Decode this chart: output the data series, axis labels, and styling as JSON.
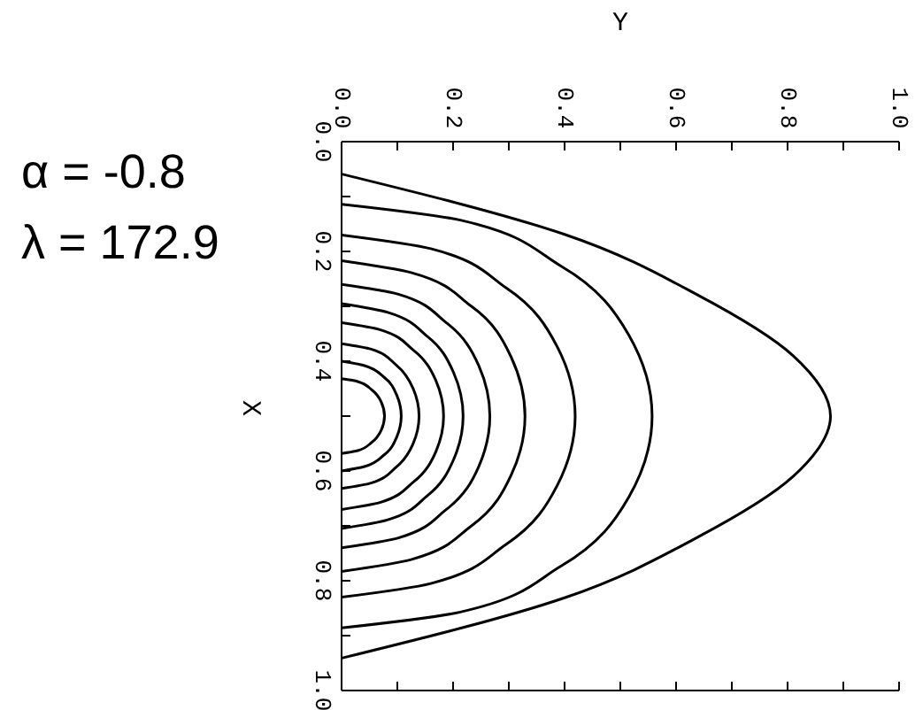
{
  "chart_data": {
    "type": "line",
    "xlabel": "Y",
    "ylabel": "X",
    "xlim": [
      0,
      1
    ],
    "ylim": [
      1,
      0
    ],
    "xticks": [
      {
        "value": 0,
        "label": "0.0"
      },
      {
        "value": 0.1,
        "label": null
      },
      {
        "value": 0.2,
        "label": "0.2"
      },
      {
        "value": 0.3,
        "label": null
      },
      {
        "value": 0.4,
        "label": "0.4"
      },
      {
        "value": 0.5,
        "label": null
      },
      {
        "value": 0.6,
        "label": "0.6"
      },
      {
        "value": 0.7,
        "label": null
      },
      {
        "value": 0.8,
        "label": "0.8"
      },
      {
        "value": 0.9,
        "label": null
      },
      {
        "value": 1,
        "label": "1.0"
      }
    ],
    "yticks": [
      {
        "value": 0,
        "label": "0.0"
      },
      {
        "value": 0.1,
        "label": null
      },
      {
        "value": 0.2,
        "label": "0.2"
      },
      {
        "value": 0.3,
        "label": null
      },
      {
        "value": 0.4,
        "label": "0.4"
      },
      {
        "value": 0.5,
        "label": null
      },
      {
        "value": 0.6,
        "label": "0.6"
      },
      {
        "value": 0.7,
        "label": null
      },
      {
        "value": 0.8,
        "label": "0.8"
      },
      {
        "value": 0.9,
        "label": null
      },
      {
        "value": 1,
        "label": "1.0"
      }
    ],
    "grid": false,
    "legend": false,
    "marker": "none",
    "line_style": "solid",
    "annotations": [
      "α = -0.8",
      "λ = 172.9"
    ],
    "series": [
      {
        "color": "#000000",
        "x": [
          0,
          0.4,
          0.64,
          0.81,
          0.877,
          0.81,
          0.64,
          0.4,
          0
        ],
        "values": [
          0.059,
          0.169,
          0.28,
          0.39,
          0.5,
          0.61,
          0.72,
          0.831,
          0.941
        ]
      },
      {
        "color": "#000000",
        "x": [
          0,
          0.213,
          0.394,
          0.515,
          0.557,
          0.515,
          0.394,
          0.213,
          0
        ],
        "values": [
          0.114,
          0.143,
          0.227,
          0.352,
          0.5,
          0.648,
          0.773,
          0.857,
          0.886
        ]
      },
      {
        "color": "#000000",
        "x": [
          0,
          0.16,
          0.296,
          0.387,
          0.419,
          0.387,
          0.296,
          0.16,
          0
        ],
        "values": [
          0.17,
          0.195,
          0.267,
          0.374,
          0.5,
          0.626,
          0.733,
          0.805,
          0.83
        ]
      },
      {
        "color": "#000000",
        "x": [
          0,
          0.126,
          0.233,
          0.304,
          0.329,
          0.304,
          0.233,
          0.126,
          0
        ],
        "values": [
          0.217,
          0.239,
          0.3,
          0.392,
          0.5,
          0.608,
          0.7,
          0.761,
          0.783
        ]
      },
      {
        "color": "#000000",
        "x": [
          0,
          0.102,
          0.188,
          0.246,
          0.266,
          0.246,
          0.188,
          0.102,
          0
        ],
        "values": [
          0.26,
          0.278,
          0.33,
          0.408,
          0.5,
          0.592,
          0.67,
          0.722,
          0.74
        ]
      },
      {
        "color": "#000000",
        "x": [
          0,
          0.083,
          0.154,
          0.201,
          0.218,
          0.201,
          0.154,
          0.083,
          0
        ],
        "values": [
          0.295,
          0.311,
          0.355,
          0.421,
          0.5,
          0.579,
          0.645,
          0.689,
          0.705
        ]
      },
      {
        "color": "#000000",
        "x": [
          0,
          0.07,
          0.129,
          0.169,
          0.183,
          0.169,
          0.129,
          0.07,
          0
        ],
        "values": [
          0.33,
          0.343,
          0.38,
          0.435,
          0.5,
          0.565,
          0.62,
          0.657,
          0.67
        ]
      },
      {
        "color": "#000000",
        "x": [
          0,
          0.053,
          0.098,
          0.128,
          0.139,
          0.128,
          0.098,
          0.053,
          0
        ],
        "values": [
          0.368,
          0.378,
          0.407,
          0.449,
          0.5,
          0.551,
          0.593,
          0.622,
          0.632
        ]
      },
      {
        "color": "#000000",
        "x": [
          0,
          0.041,
          0.076,
          0.099,
          0.107,
          0.099,
          0.076,
          0.041,
          0
        ],
        "values": [
          0.4,
          0.408,
          0.429,
          0.462,
          0.5,
          0.538,
          0.571,
          0.592,
          0.6
        ]
      },
      {
        "color": "#000000",
        "x": [
          0,
          0.029,
          0.054,
          0.071,
          0.077,
          0.071,
          0.054,
          0.029,
          0
        ],
        "values": [
          0.432,
          0.437,
          0.452,
          0.474,
          0.5,
          0.526,
          0.548,
          0.563,
          0.568
        ]
      }
    ]
  }
}
